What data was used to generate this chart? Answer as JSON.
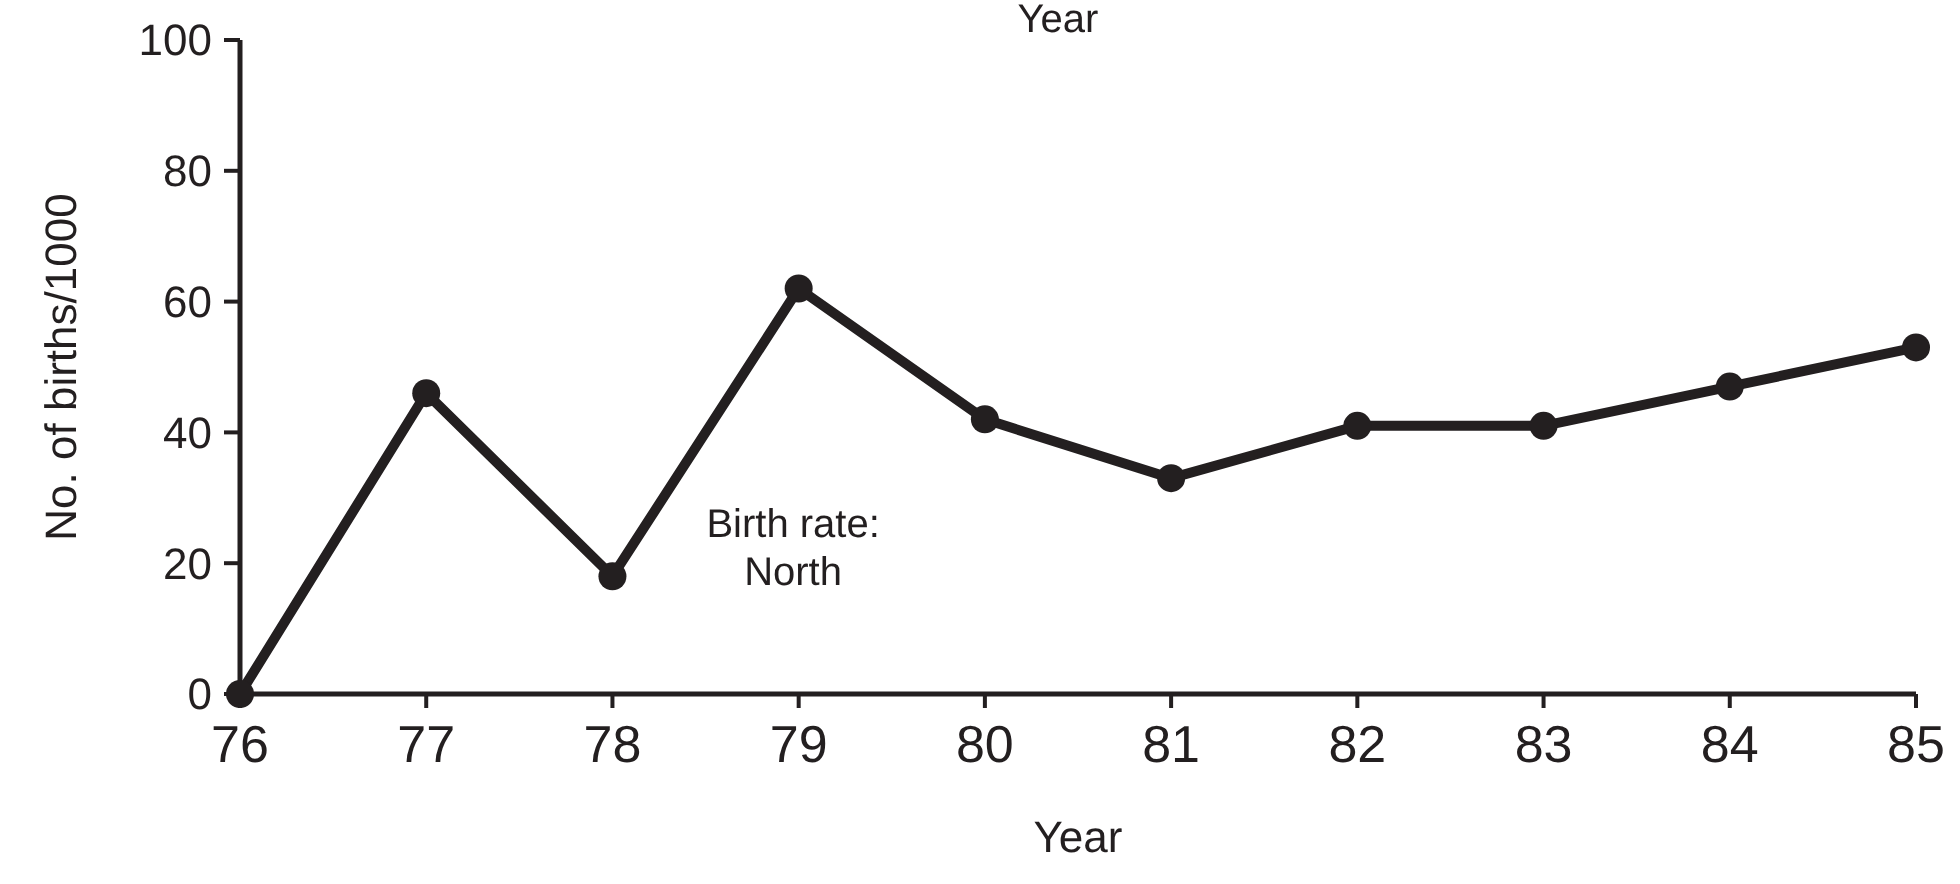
{
  "chart_data": {
    "type": "line",
    "xlabel": "Year",
    "ylabel": "No. of births/1000",
    "x": [
      76,
      77,
      78,
      79,
      80,
      81,
      82,
      83,
      84,
      85
    ],
    "series": [
      {
        "color": "#231f20",
        "values": [
          0,
          46,
          18,
          62,
          42,
          33,
          41,
          41,
          47,
          53
        ]
      }
    ],
    "xlim": [
      76,
      85
    ],
    "ylim": [
      0,
      100
    ],
    "xticks": [
      76,
      77,
      78,
      79,
      80,
      81,
      82,
      83,
      84,
      85
    ],
    "yticks": [
      0,
      20,
      40,
      60,
      80,
      100
    ],
    "marker": "circle",
    "line_style": "solid",
    "grid": false,
    "annotations": [
      "Year",
      "Birth rate:\nNorth"
    ]
  }
}
